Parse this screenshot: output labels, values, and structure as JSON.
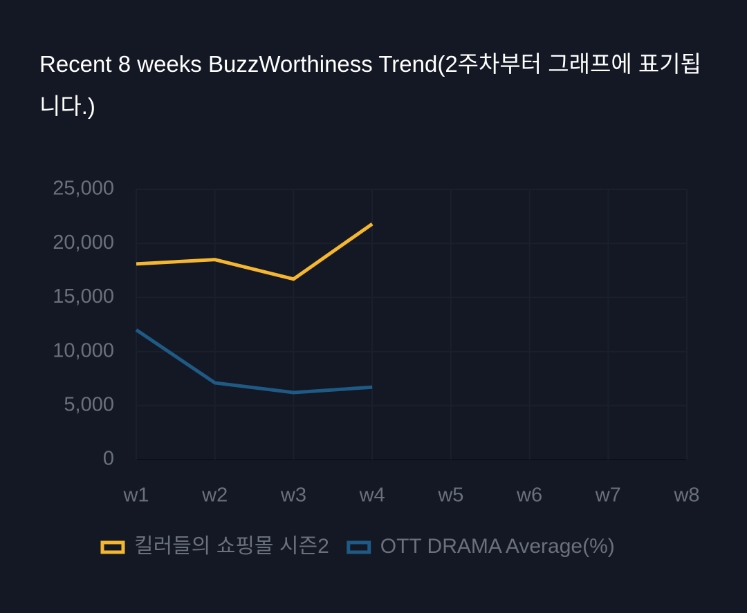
{
  "chart_data": {
    "type": "line",
    "title": "Recent 8 weeks BuzzWorthiness Trend(2주차부터 그래프에 표기됩니다.)",
    "categories": [
      "w1",
      "w2",
      "w3",
      "w4",
      "w5",
      "w6",
      "w7",
      "w8"
    ],
    "series": [
      {
        "name": "킬러들의 쇼핑몰 시즌2",
        "color": "#f5b731",
        "values": [
          18100,
          18500,
          16700,
          21800,
          null,
          null,
          null,
          null
        ]
      },
      {
        "name": "OTT DRAMA Average(%)",
        "color": "#1f5a85",
        "values": [
          12000,
          7100,
          6200,
          6700,
          null,
          null,
          null,
          null
        ]
      }
    ],
    "ylim": [
      0,
      25000
    ],
    "yticks": [
      0,
      {
        "value": 5000,
        "label": "5,000"
      },
      {
        "value": 10000,
        "label": "10,000"
      },
      {
        "value": 15000,
        "label": "15,000"
      },
      {
        "value": 20000,
        "label": "20,000"
      },
      {
        "value": 25000,
        "label": "25,000"
      }
    ],
    "grid": true
  }
}
